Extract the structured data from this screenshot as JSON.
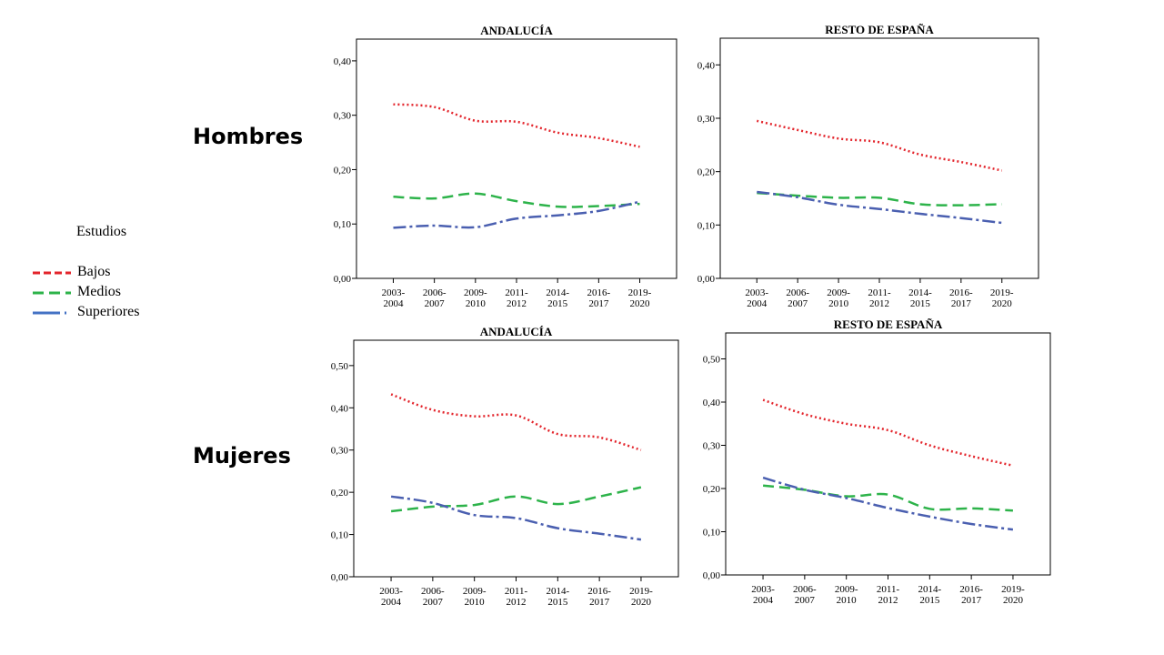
{
  "row_labels": {
    "top": "Hombres",
    "bottom": "Mujeres"
  },
  "legend": {
    "title": "Estudios",
    "items": [
      {
        "label": "Bajos",
        "color": "#e3242b"
      },
      {
        "label": "Medios",
        "color": "#2db34a"
      },
      {
        "label": "Superiores",
        "color": "#4472c4"
      }
    ]
  },
  "chart_data": [
    {
      "type": "line",
      "title": "ANDALUCÍA",
      "categories": [
        "2003-\n2004",
        "2006-\n2007",
        "2009-\n2010",
        "2011-\n2012",
        "2014-\n2015",
        "2016-\n2017",
        "2019-\n2020"
      ],
      "yticks": [
        "0,00",
        "0,10",
        "0,20",
        "0,30",
        "0,40"
      ],
      "ylim": [
        0,
        0.44
      ],
      "series": [
        {
          "name": "Bajos",
          "color": "#e3242b",
          "values": [
            0.32,
            0.315,
            0.29,
            0.288,
            0.268,
            0.258,
            0.242
          ]
        },
        {
          "name": "Medios",
          "color": "#2db34a",
          "values": [
            0.15,
            0.147,
            0.156,
            0.142,
            0.132,
            0.133,
            0.137
          ]
        },
        {
          "name": "Superiores",
          "color": "#4a5fb0",
          "values": [
            0.093,
            0.097,
            0.094,
            0.11,
            0.116,
            0.124,
            0.141
          ]
        }
      ]
    },
    {
      "type": "line",
      "title": "RESTO DE ESPAÑA",
      "categories": [
        "2003-\n2004",
        "2006-\n2007",
        "2009-\n2010",
        "2011-\n2012",
        "2014-\n2015",
        "2016-\n2017",
        "2019-\n2020"
      ],
      "yticks": [
        "0,00",
        "0,10",
        "0,20",
        "0,30",
        "0,40"
      ],
      "ylim": [
        0,
        0.45
      ],
      "series": [
        {
          "name": "Bajos",
          "color": "#e3242b",
          "values": [
            0.295,
            0.278,
            0.262,
            0.255,
            0.232,
            0.218,
            0.202
          ]
        },
        {
          "name": "Medios",
          "color": "#2db34a",
          "values": [
            0.16,
            0.155,
            0.151,
            0.151,
            0.139,
            0.137,
            0.139
          ]
        },
        {
          "name": "Superiores",
          "color": "#4a5fb0",
          "values": [
            0.162,
            0.152,
            0.138,
            0.13,
            0.121,
            0.113,
            0.104
          ]
        }
      ]
    },
    {
      "type": "line",
      "title": "ANDALUCÍA",
      "categories": [
        "2003-\n2004",
        "2006-\n2007",
        "2009-\n2010",
        "2011-\n2012",
        "2014-\n2015",
        "2016-\n2017",
        "2019-\n2020"
      ],
      "yticks": [
        "0,00",
        "0,10",
        "0,20",
        "0,30",
        "0,40",
        "0,50"
      ],
      "ylim": [
        0,
        0.56
      ],
      "series": [
        {
          "name": "Bajos",
          "color": "#e3242b",
          "values": [
            0.432,
            0.395,
            0.38,
            0.382,
            0.338,
            0.33,
            0.3
          ]
        },
        {
          "name": "Medios",
          "color": "#2db34a",
          "values": [
            0.155,
            0.166,
            0.17,
            0.19,
            0.172,
            0.19,
            0.212
          ]
        },
        {
          "name": "Superiores",
          "color": "#4a5fb0",
          "values": [
            0.19,
            0.175,
            0.146,
            0.139,
            0.115,
            0.102,
            0.088
          ]
        }
      ]
    },
    {
      "type": "line",
      "title": "RESTO DE ESPAÑA",
      "categories": [
        "2003-\n2004",
        "2006-\n2007",
        "2009-\n2010",
        "2011-\n2012",
        "2014-\n2015",
        "2016-\n2017",
        "2019-\n2020"
      ],
      "yticks": [
        "0,00",
        "0,10",
        "0,20",
        "0,30",
        "0,40",
        "0,50"
      ],
      "ylim": [
        0,
        0.56
      ],
      "series": [
        {
          "name": "Bajos",
          "color": "#e3242b",
          "values": [
            0.405,
            0.372,
            0.35,
            0.335,
            0.3,
            0.275,
            0.253
          ]
        },
        {
          "name": "Medios",
          "color": "#2db34a",
          "values": [
            0.207,
            0.197,
            0.182,
            0.186,
            0.153,
            0.154,
            0.149
          ]
        },
        {
          "name": "Superiores",
          "color": "#4a5fb0",
          "values": [
            0.225,
            0.197,
            0.178,
            0.155,
            0.135,
            0.118,
            0.105
          ]
        }
      ]
    }
  ]
}
